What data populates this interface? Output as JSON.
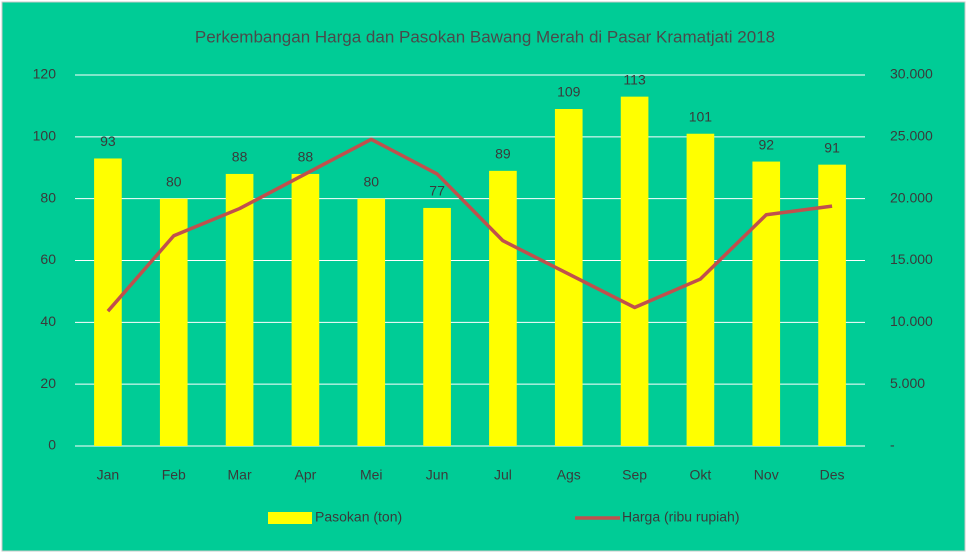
{
  "chart_data": {
    "type": "bar+line",
    "title": "Perkembangan Harga dan Pasokan Bawang Merah di Pasar Kramatjati 2018",
    "categories": [
      "Jan",
      "Feb",
      "Mar",
      "Apr",
      "Mei",
      "Jun",
      "Jul",
      "Ags",
      "Sep",
      "Okt",
      "Nov",
      "Des"
    ],
    "series": [
      {
        "name": "Pasokan (ton)",
        "type": "bar",
        "color": "#ffff00",
        "axis": "y",
        "values": [
          93,
          80,
          88,
          88,
          80,
          77,
          89,
          109,
          113,
          101,
          92,
          91
        ]
      },
      {
        "name": "Harga (ribu rupiah)",
        "type": "line",
        "color": "#c0504d",
        "axis": "y2",
        "values": [
          10900,
          17000,
          19200,
          22000,
          24800,
          22000,
          16600,
          13900,
          11200,
          13500,
          18700,
          19400
        ]
      }
    ],
    "ylim": [
      0,
      120
    ],
    "yticks": [
      0,
      20,
      40,
      60,
      80,
      100,
      120
    ],
    "y2lim": [
      0,
      30000
    ],
    "y2ticks": [
      {
        "value": 0,
        "label": "-"
      },
      {
        "value": 5000,
        "label": "5.000"
      },
      {
        "value": 10000,
        "label": "10.000"
      },
      {
        "value": 15000,
        "label": "15.000"
      },
      {
        "value": 20000,
        "label": "20.000"
      },
      {
        "value": 25000,
        "label": "25.000"
      },
      {
        "value": 30000,
        "label": "30.000"
      }
    ],
    "grid": true,
    "legend": "bottom",
    "background": "#00cc96"
  }
}
